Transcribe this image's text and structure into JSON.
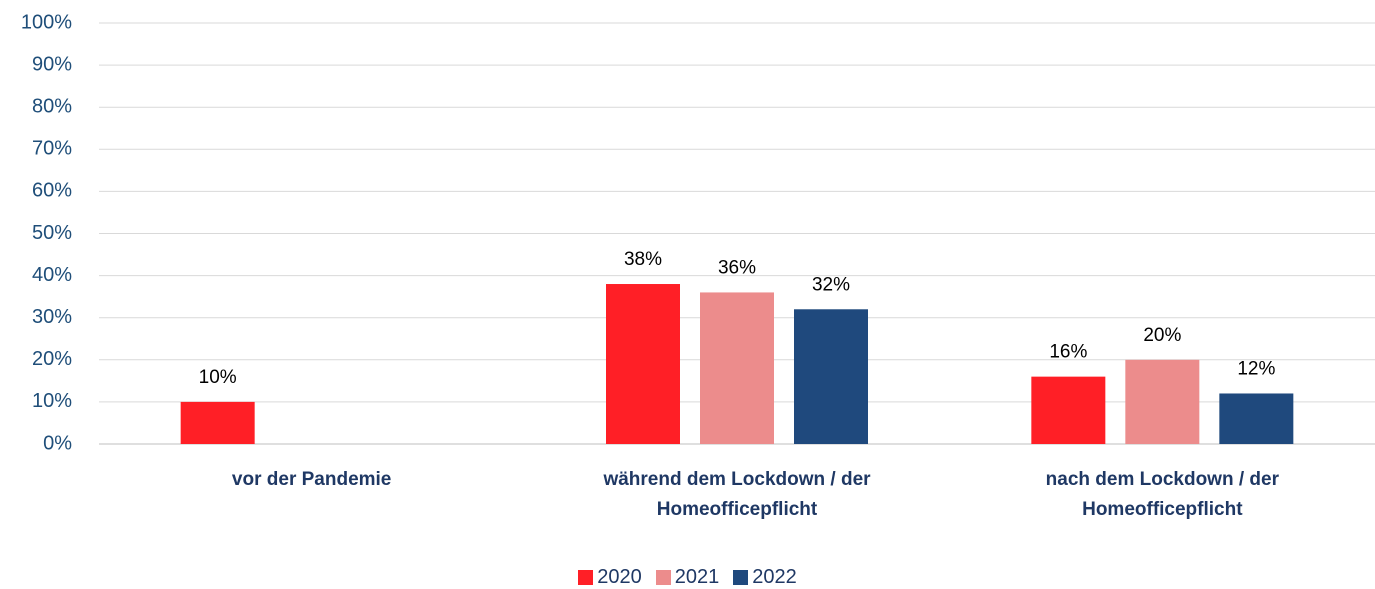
{
  "chart_data": {
    "type": "bar",
    "categories": [
      "vor der Pandemie",
      "während dem Lockdown / der Homeofficepflicht",
      "nach dem Lockdown / der Homeofficepflicht"
    ],
    "series": [
      {
        "name": "2020",
        "color": "#ff1f26",
        "values": [
          10,
          38,
          16
        ],
        "value_labels": [
          "10%",
          "38%",
          "16%"
        ]
      },
      {
        "name": "2021",
        "color": "#ec8c8c",
        "values": [
          null,
          36,
          20
        ],
        "value_labels": [
          null,
          "36%",
          "20%"
        ]
      },
      {
        "name": "2022",
        "color": "#1f497d",
        "values": [
          null,
          32,
          12
        ],
        "value_labels": [
          null,
          "32%",
          "12%"
        ]
      }
    ],
    "ylim": [
      0,
      100
    ],
    "yticks": [
      {
        "value": 0,
        "label": "0%"
      },
      {
        "value": 10,
        "label": "10%"
      },
      {
        "value": 20,
        "label": "20%"
      },
      {
        "value": 30,
        "label": "30%"
      },
      {
        "value": 40,
        "label": "40%"
      },
      {
        "value": 50,
        "label": "50%"
      },
      {
        "value": 60,
        "label": "60%"
      },
      {
        "value": 70,
        "label": "70%"
      },
      {
        "value": 80,
        "label": "80%"
      },
      {
        "value": 90,
        "label": "90%"
      },
      {
        "value": 100,
        "label": "100%"
      }
    ],
    "grid": true,
    "legend": "bottom"
  }
}
